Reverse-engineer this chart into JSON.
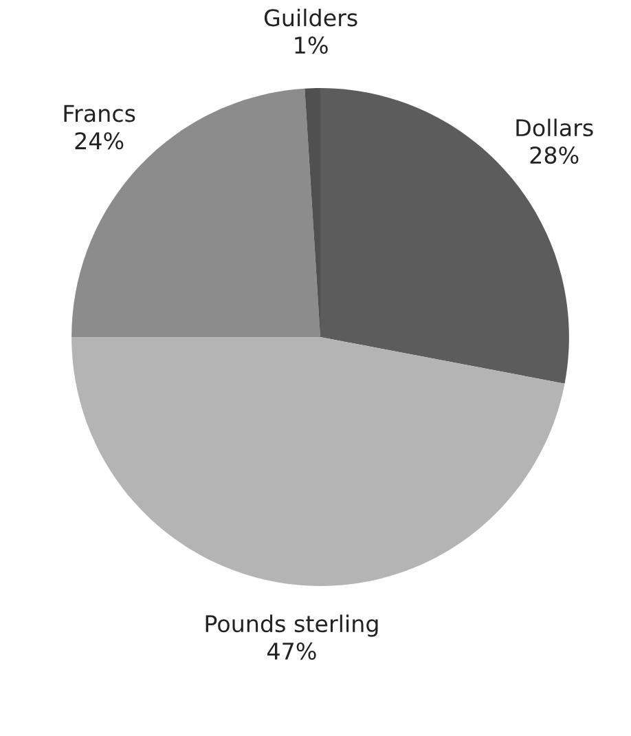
{
  "chart_data": {
    "type": "pie",
    "categories": [
      "Dollars",
      "Pounds sterling",
      "Francs",
      "Guilders"
    ],
    "values": [
      28,
      47,
      24,
      1
    ],
    "value_labels": [
      "28%",
      "47%",
      "24%",
      "1%"
    ],
    "colors": [
      "#5c5c5c",
      "#b4b4b4",
      "#8c8c8c",
      "#505050"
    ]
  }
}
